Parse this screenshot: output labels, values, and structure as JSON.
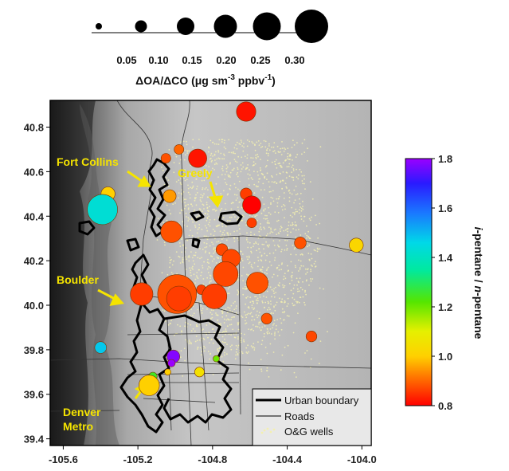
{
  "colors": {
    "background_map_dark": "#1a1a1a",
    "background_map_light": "#bdbdbd",
    "urban_boundary": "#000000",
    "wells": "#f3f0b0",
    "callout": "#f5e400"
  },
  "size_legend": {
    "values": [
      "0.05",
      "0.10",
      "0.15",
      "0.20",
      "0.25",
      "0.30"
    ],
    "label_main": "ΔOA/ΔCO (μg sm",
    "label_sup1": "-3",
    "label_mid": " ppbv",
    "label_sup2": "-1",
    "label_end": ")"
  },
  "color_bar": {
    "label_part1": "i",
    "label_part2": "-pentane / ",
    "label_part3": "n",
    "label_part4": "-pentane",
    "ticks": [
      "1.8",
      "1.6",
      "1.4",
      "1.2",
      "1.0",
      "0.8"
    ],
    "range": [
      0.8,
      1.8
    ]
  },
  "map_legend": {
    "items": [
      {
        "label": "Urban boundary",
        "symbol": "thick-line"
      },
      {
        "label": "Roads",
        "symbol": "thin-line"
      },
      {
        "label": "O&G wells",
        "symbol": "dots"
      }
    ]
  },
  "callouts": [
    {
      "text": "Fort Collins"
    },
    {
      "text": "Greely"
    },
    {
      "text": "Boulder"
    },
    {
      "text": "Denver"
    },
    {
      "text": "Metro"
    }
  ],
  "chart_data": {
    "type": "scatter",
    "x_ticks": [
      "-105.6",
      "-105.2",
      "-104.8",
      "-104.4",
      "-104.0"
    ],
    "y_ticks": [
      "40.8",
      "40.6",
      "40.4",
      "40.2",
      "40.0",
      "39.8",
      "39.6",
      "39.4"
    ],
    "xlim": [
      -105.67,
      -103.95
    ],
    "ylim": [
      39.37,
      40.92
    ],
    "points": [
      {
        "lon": -104.62,
        "lat": 40.87,
        "oa": 0.15,
        "ratio": 0.82
      },
      {
        "lon": -104.98,
        "lat": 40.7,
        "oa": 0.06,
        "ratio": 0.9
      },
      {
        "lon": -105.05,
        "lat": 40.66,
        "oa": 0.06,
        "ratio": 0.88
      },
      {
        "lon": -104.88,
        "lat": 40.66,
        "oa": 0.14,
        "ratio": 0.82
      },
      {
        "lon": -104.62,
        "lat": 40.5,
        "oa": 0.08,
        "ratio": 0.86
      },
      {
        "lon": -104.59,
        "lat": 40.45,
        "oa": 0.14,
        "ratio": 0.8
      },
      {
        "lon": -104.59,
        "lat": 40.37,
        "oa": 0.06,
        "ratio": 0.86
      },
      {
        "lon": -105.36,
        "lat": 40.5,
        "oa": 0.1,
        "ratio": 1.0
      },
      {
        "lon": -105.39,
        "lat": 40.43,
        "oa": 0.25,
        "ratio": 1.43
      },
      {
        "lon": -105.03,
        "lat": 40.49,
        "oa": 0.09,
        "ratio": 0.95
      },
      {
        "lon": -105.02,
        "lat": 40.33,
        "oa": 0.17,
        "ratio": 0.88
      },
      {
        "lon": -104.75,
        "lat": 40.25,
        "oa": 0.08,
        "ratio": 0.87
      },
      {
        "lon": -104.7,
        "lat": 40.21,
        "oa": 0.14,
        "ratio": 0.87
      },
      {
        "lon": -104.73,
        "lat": 40.14,
        "oa": 0.2,
        "ratio": 0.87
      },
      {
        "lon": -104.56,
        "lat": 40.1,
        "oa": 0.17,
        "ratio": 0.88
      },
      {
        "lon": -104.33,
        "lat": 40.28,
        "oa": 0.08,
        "ratio": 0.88
      },
      {
        "lon": -104.03,
        "lat": 40.27,
        "oa": 0.1,
        "ratio": 1.02
      },
      {
        "lon": -105.18,
        "lat": 40.05,
        "oa": 0.18,
        "ratio": 0.86
      },
      {
        "lon": -104.99,
        "lat": 40.05,
        "oa": 0.33,
        "ratio": 0.88
      },
      {
        "lon": -104.98,
        "lat": 40.03,
        "oa": 0.2,
        "ratio": 0.86
      },
      {
        "lon": -104.86,
        "lat": 40.07,
        "oa": 0.06,
        "ratio": 0.86
      },
      {
        "lon": -104.79,
        "lat": 40.04,
        "oa": 0.2,
        "ratio": 0.86
      },
      {
        "lon": -104.51,
        "lat": 39.94,
        "oa": 0.07,
        "ratio": 0.88
      },
      {
        "lon": -104.27,
        "lat": 39.86,
        "oa": 0.07,
        "ratio": 0.87
      },
      {
        "lon": -105.4,
        "lat": 39.81,
        "oa": 0.08,
        "ratio": 1.48
      },
      {
        "lon": -105.01,
        "lat": 39.77,
        "oa": 0.09,
        "ratio": 1.78
      },
      {
        "lon": -105.02,
        "lat": 39.74,
        "oa": 0.04,
        "ratio": 1.8
      },
      {
        "lon": -105.12,
        "lat": 39.68,
        "oa": 0.05,
        "ratio": 1.25
      },
      {
        "lon": -105.04,
        "lat": 39.7,
        "oa": 0.03,
        "ratio": 1.0
      },
      {
        "lon": -104.87,
        "lat": 39.7,
        "oa": 0.06,
        "ratio": 1.05
      },
      {
        "lon": -104.78,
        "lat": 39.76,
        "oa": 0.03,
        "ratio": 1.2
      },
      {
        "lon": -105.14,
        "lat": 39.64,
        "oa": 0.16,
        "ratio": 1.0
      }
    ]
  }
}
